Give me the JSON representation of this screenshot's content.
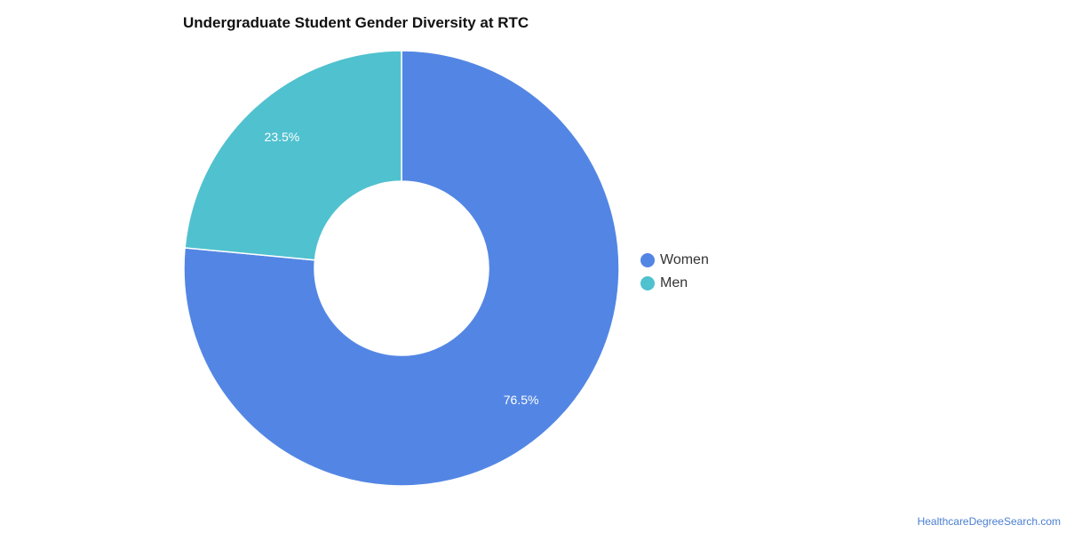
{
  "chart_data": {
    "type": "pie",
    "title": "Undergraduate Student Gender Diversity at RTC",
    "categories": [
      "Women",
      "Men"
    ],
    "values": [
      76.5,
      23.5
    ],
    "labels": [
      "76.5%",
      "23.5%"
    ],
    "colors": [
      "#5386e4",
      "#50c1cf"
    ],
    "donut": true,
    "legend_position": "right"
  },
  "footer": {
    "credit": "HealthcareDegreeSearch.com"
  }
}
